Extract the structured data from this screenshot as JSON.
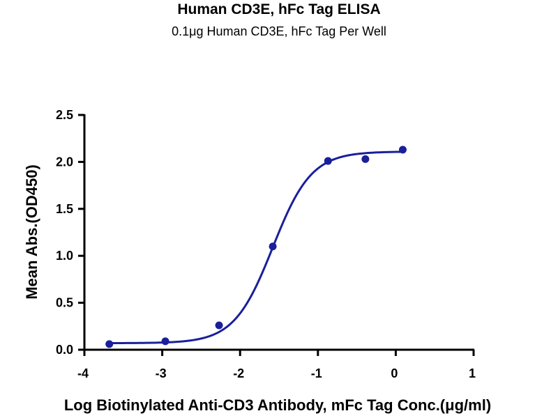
{
  "chart_data": {
    "type": "scatter",
    "title": "Human CD3E, hFc Tag ELISA",
    "subtitle": "0.1μg Human CD3E, hFc Tag Per Well",
    "xlabel": "Log Biotinylated Anti-CD3 Antibody, mFc Tag Conc.(μg/ml)",
    "ylabel": "Mean Abs.(OD450)",
    "xlim": [
      -4,
      1
    ],
    "ylim": [
      0,
      2.5
    ],
    "x_ticks": [
      "-4",
      "-3",
      "-2",
      "-1",
      "0",
      "1"
    ],
    "y_ticks": [
      "0.0",
      "0.5",
      "1.0",
      "1.5",
      "2.0",
      "2.5"
    ],
    "grid": false,
    "series": [
      {
        "points": [
          {
            "x": -3.68,
            "y": 0.06
          },
          {
            "x": -2.96,
            "y": 0.09
          },
          {
            "x": -2.27,
            "y": 0.26
          },
          {
            "x": -1.58,
            "y": 1.1
          },
          {
            "x": -0.87,
            "y": 2.01
          },
          {
            "x": -0.39,
            "y": 2.03
          },
          {
            "x": 0.09,
            "y": 2.13
          }
        ],
        "fit": {
          "model": "4PL",
          "bottom": 0.07,
          "top": 2.11,
          "logEC50": -1.58,
          "hill": 1.75
        }
      }
    ],
    "colors": {
      "series": "#1a1f9c",
      "axis": "#000000"
    }
  }
}
